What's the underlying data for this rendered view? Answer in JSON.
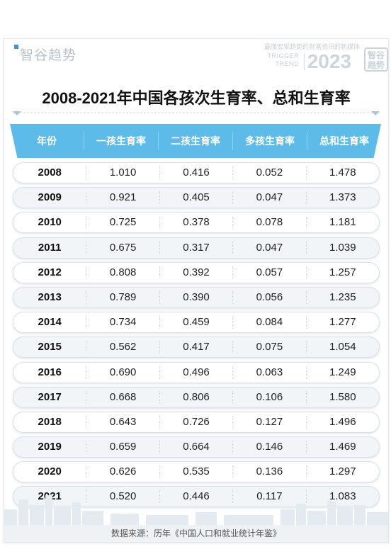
{
  "brand": {
    "logo_text": "智谷趋势",
    "slogan": "最懂宏观趋势的财富资讯的新媒体",
    "trigger_line1": "TRIGGER",
    "trigger_line2": "TREND",
    "year": "2023",
    "badge_line1": "智谷",
    "badge_line2": "趋势"
  },
  "chart_data": {
    "type": "table",
    "title": "2008-2021年中国各孩次生育率、总和生育率",
    "columns": [
      "年份",
      "一孩生育率",
      "二孩生育率",
      "多孩生育率",
      "总和生育率"
    ],
    "rows": [
      [
        "2008",
        "1.010",
        "0.416",
        "0.052",
        "1.478"
      ],
      [
        "2009",
        "0.921",
        "0.405",
        "0.047",
        "1.373"
      ],
      [
        "2010",
        "0.725",
        "0.378",
        "0.078",
        "1.181"
      ],
      [
        "2011",
        "0.675",
        "0.317",
        "0.047",
        "1.039"
      ],
      [
        "2012",
        "0.808",
        "0.392",
        "0.057",
        "1.257"
      ],
      [
        "2013",
        "0.789",
        "0.390",
        "0.056",
        "1.235"
      ],
      [
        "2014",
        "0.734",
        "0.459",
        "0.084",
        "1.277"
      ],
      [
        "2015",
        "0.562",
        "0.417",
        "0.075",
        "1.054"
      ],
      [
        "2016",
        "0.690",
        "0.496",
        "0.063",
        "1.249"
      ],
      [
        "2017",
        "0.668",
        "0.806",
        "0.106",
        "1.580"
      ],
      [
        "2018",
        "0.643",
        "0.726",
        "0.127",
        "1.496"
      ],
      [
        "2019",
        "0.659",
        "0.664",
        "0.146",
        "1.469"
      ],
      [
        "2020",
        "0.626",
        "0.535",
        "0.136",
        "1.297"
      ],
      [
        "2021",
        "0.520",
        "0.446",
        "0.117",
        "1.083"
      ]
    ]
  },
  "footer": {
    "source": "数据来源：历年《中国人口和就业统计年鉴》"
  },
  "colors": {
    "header_bg": "#5cbbe8",
    "row_alt_bg": "#f1f5f8",
    "text": "#222222"
  }
}
